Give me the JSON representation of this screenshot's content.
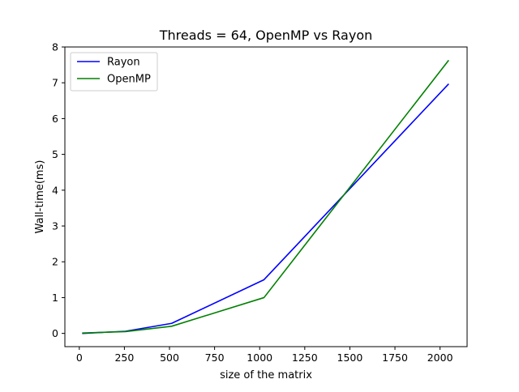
{
  "chart_data": {
    "type": "line",
    "title": "Threads = 64, OpenMP vs Rayon",
    "xlabel": "size of the matrix",
    "ylabel": "Wall-time(ms)",
    "xlim": [
      -80,
      2150
    ],
    "ylim": [
      -0.37,
      8.0
    ],
    "xticks": [
      0,
      250,
      500,
      750,
      1000,
      1250,
      1500,
      1750,
      2000
    ],
    "yticks": [
      0,
      1,
      2,
      3,
      4,
      5,
      6,
      7,
      8
    ],
    "grid": false,
    "legend_position": "top-left",
    "x": [
      16,
      256,
      512,
      1024,
      2048
    ],
    "series": [
      {
        "name": "Rayon",
        "color": "#0000ff",
        "values": [
          0.0,
          0.06,
          0.28,
          1.5,
          6.97
        ]
      },
      {
        "name": "OpenMP",
        "color": "#008000",
        "values": [
          0.01,
          0.05,
          0.2,
          1.0,
          7.63
        ]
      }
    ]
  }
}
